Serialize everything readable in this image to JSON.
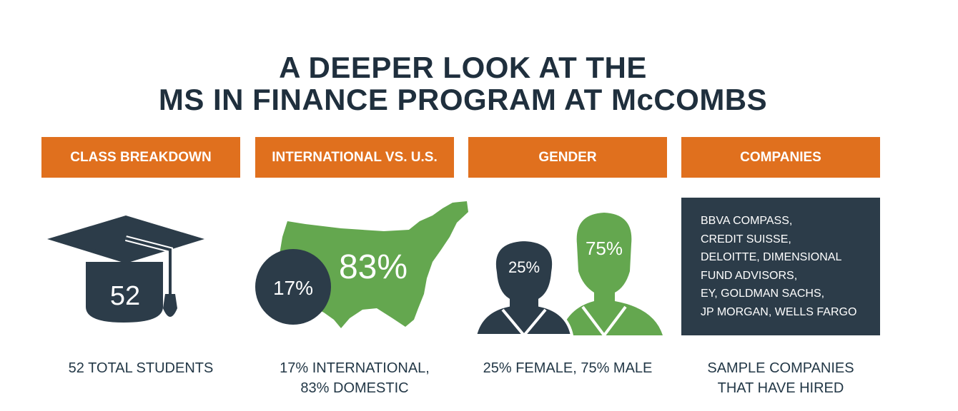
{
  "title": {
    "line1": "A DEEPER LOOK AT THE",
    "line2": "MS IN FINANCE PROGRAM AT McCOMBS"
  },
  "colors": {
    "accent_orange": "#e0701e",
    "navy": "#2c3c49",
    "green": "#64a74f"
  },
  "sections": [
    {
      "header": "CLASS BREAKDOWN",
      "icon": "graduation-cap-icon",
      "figure_value": "52",
      "caption_lines": [
        "52 TOTAL STUDENTS"
      ]
    },
    {
      "header": "INTERNATIONAL VS. U.S.",
      "icon": "us-map-icon",
      "international_value": "17%",
      "domestic_value": "83%",
      "caption_lines": [
        "17% INTERNATIONAL,",
        "83% DOMESTIC"
      ]
    },
    {
      "header": "GENDER",
      "icon": "people-icon",
      "female_value": "25%",
      "male_value": "75%",
      "caption_lines": [
        "25% FEMALE, 75% MALE"
      ]
    },
    {
      "header": "COMPANIES",
      "companies_lines": [
        "BBVA COMPASS,",
        "CREDIT SUISSE,",
        "DELOITTE, DIMENSIONAL",
        "FUND ADVISORS,",
        "EY, GOLDMAN SACHS,",
        "JP MORGAN, WELLS FARGO"
      ],
      "caption_lines": [
        "SAMPLE COMPANIES",
        "THAT HAVE HIRED"
      ]
    }
  ]
}
